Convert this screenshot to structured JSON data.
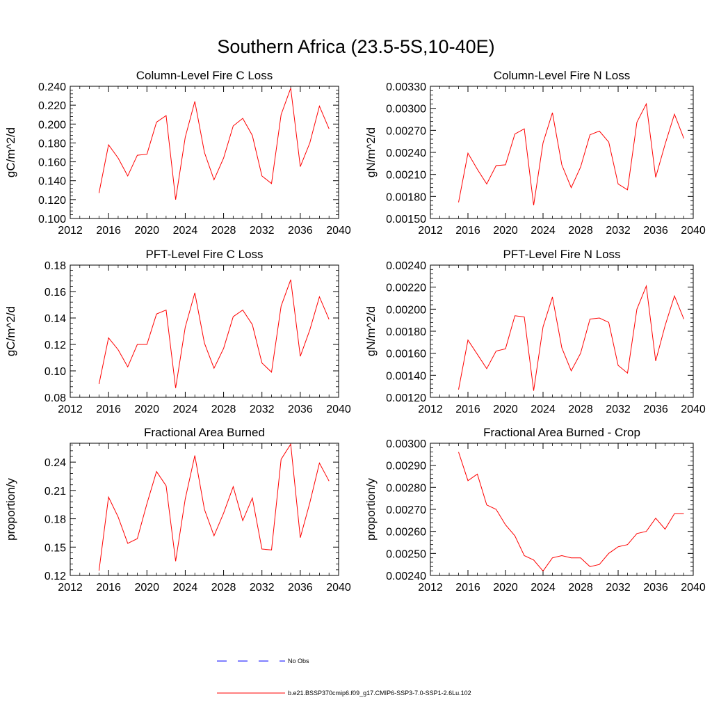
{
  "page": {
    "title": "Southern Africa (23.5-5S,10-40E)"
  },
  "legend": [
    {
      "label": "No Obs",
      "color": "#0000ff",
      "style": "dashed"
    },
    {
      "label": "b.e21.BSSP370cmip6.f09_g17.CMIP6-SSP3-7.0-SSP1-2.6Lu.102",
      "color": "#ff0000",
      "style": "solid"
    }
  ],
  "chart_data": [
    {
      "type": "line",
      "title": "Column-Level Fire C Loss",
      "ylabel": "gC/m^2/d",
      "xlabel": "",
      "xlim": [
        2012,
        2040
      ],
      "ylim": [
        0.1,
        0.24
      ],
      "xticks": [
        2012,
        2016,
        2020,
        2024,
        2028,
        2032,
        2036,
        2040
      ],
      "xtick_labels": [
        "2012",
        "2016",
        "2020",
        "2024",
        "2028",
        "2032",
        "2036",
        "2040"
      ],
      "yticks": [
        0.1,
        0.12,
        0.14,
        0.16,
        0.18,
        0.2,
        0.22,
        0.24
      ],
      "ytick_labels": [
        "0.100",
        "0.120",
        "0.140",
        "0.160",
        "0.180",
        "0.200",
        "0.220",
        "0.240"
      ],
      "color": "#ff0000",
      "x": [
        2015,
        2016,
        2017,
        2018,
        2019,
        2020,
        2021,
        2022,
        2023,
        2024,
        2025,
        2026,
        2027,
        2028,
        2029,
        2030,
        2031,
        2032,
        2033,
        2034,
        2035,
        2036,
        2037,
        2038,
        2039
      ],
      "y": [
        0.127,
        0.178,
        0.164,
        0.145,
        0.167,
        0.168,
        0.202,
        0.209,
        0.12,
        0.186,
        0.224,
        0.17,
        0.141,
        0.164,
        0.198,
        0.206,
        0.188,
        0.145,
        0.137,
        0.21,
        0.238,
        0.155,
        0.18,
        0.219,
        0.195
      ]
    },
    {
      "type": "line",
      "title": "Column-Level Fire N Loss",
      "ylabel": "gN/m^2/d",
      "xlabel": "",
      "xlim": [
        2012,
        2040
      ],
      "ylim": [
        0.0015,
        0.0033
      ],
      "xticks": [
        2012,
        2016,
        2020,
        2024,
        2028,
        2032,
        2036,
        2040
      ],
      "xtick_labels": [
        "2012",
        "2016",
        "2020",
        "2024",
        "2028",
        "2032",
        "2036",
        "2040"
      ],
      "yticks": [
        0.0015,
        0.0018,
        0.0021,
        0.0024,
        0.0027,
        0.003,
        0.0033
      ],
      "ytick_labels": [
        "0.00150",
        "0.00180",
        "0.00210",
        "0.00240",
        "0.00270",
        "0.00300",
        "0.00330"
      ],
      "color": "#ff0000",
      "x": [
        2015,
        2016,
        2017,
        2018,
        2019,
        2020,
        2021,
        2022,
        2023,
        2024,
        2025,
        2026,
        2027,
        2028,
        2029,
        2030,
        2031,
        2032,
        2033,
        2034,
        2035,
        2036,
        2037,
        2038,
        2039
      ],
      "y": [
        0.00172,
        0.00239,
        0.00217,
        0.00197,
        0.00222,
        0.00223,
        0.00265,
        0.00272,
        0.00168,
        0.00253,
        0.00294,
        0.00223,
        0.00192,
        0.0022,
        0.00264,
        0.00269,
        0.00254,
        0.00197,
        0.00189,
        0.00281,
        0.00306,
        0.00206,
        0.00251,
        0.00292,
        0.00259
      ]
    },
    {
      "type": "line",
      "title": "PFT-Level Fire C Loss",
      "ylabel": "gC/m^2/d",
      "xlabel": "",
      "xlim": [
        2012,
        2040
      ],
      "ylim": [
        0.08,
        0.18
      ],
      "xticks": [
        2012,
        2016,
        2020,
        2024,
        2028,
        2032,
        2036,
        2040
      ],
      "xtick_labels": [
        "2012",
        "2016",
        "2020",
        "2024",
        "2028",
        "2032",
        "2036",
        "2040"
      ],
      "yticks": [
        0.08,
        0.1,
        0.12,
        0.14,
        0.16,
        0.18
      ],
      "ytick_labels": [
        "0.08",
        "0.10",
        "0.12",
        "0.14",
        "0.16",
        "0.18"
      ],
      "color": "#ff0000",
      "x": [
        2015,
        2016,
        2017,
        2018,
        2019,
        2020,
        2021,
        2022,
        2023,
        2024,
        2025,
        2026,
        2027,
        2028,
        2029,
        2030,
        2031,
        2032,
        2033,
        2034,
        2035,
        2036,
        2037,
        2038,
        2039
      ],
      "y": [
        0.09,
        0.125,
        0.116,
        0.103,
        0.12,
        0.12,
        0.143,
        0.146,
        0.087,
        0.133,
        0.159,
        0.121,
        0.102,
        0.117,
        0.141,
        0.146,
        0.135,
        0.106,
        0.099,
        0.149,
        0.169,
        0.111,
        0.131,
        0.156,
        0.139
      ]
    },
    {
      "type": "line",
      "title": "PFT-Level Fire N Loss",
      "ylabel": "gN/m^2/d",
      "xlabel": "",
      "xlim": [
        2012,
        2040
      ],
      "ylim": [
        0.0012,
        0.0024
      ],
      "xticks": [
        2012,
        2016,
        2020,
        2024,
        2028,
        2032,
        2036,
        2040
      ],
      "xtick_labels": [
        "2012",
        "2016",
        "2020",
        "2024",
        "2028",
        "2032",
        "2036",
        "2040"
      ],
      "yticks": [
        0.0012,
        0.0014,
        0.0016,
        0.0018,
        0.002,
        0.0022,
        0.0024
      ],
      "ytick_labels": [
        "0.00120",
        "0.00140",
        "0.00160",
        "0.00180",
        "0.00200",
        "0.00220",
        "0.00240"
      ],
      "color": "#ff0000",
      "x": [
        2015,
        2016,
        2017,
        2018,
        2019,
        2020,
        2021,
        2022,
        2023,
        2024,
        2025,
        2026,
        2027,
        2028,
        2029,
        2030,
        2031,
        2032,
        2033,
        2034,
        2035,
        2036,
        2037,
        2038,
        2039
      ],
      "y": [
        0.00127,
        0.00172,
        0.00159,
        0.00146,
        0.00162,
        0.00164,
        0.00194,
        0.00193,
        0.00126,
        0.00184,
        0.00211,
        0.00165,
        0.00144,
        0.0016,
        0.00191,
        0.00192,
        0.00188,
        0.00149,
        0.00142,
        0.002,
        0.00221,
        0.00153,
        0.00185,
        0.00212,
        0.00191
      ]
    },
    {
      "type": "line",
      "title": "Fractional Area Burned",
      "ylabel": "proportion/y",
      "xlabel": "",
      "xlim": [
        2012,
        2040
      ],
      "ylim": [
        0.12,
        0.26
      ],
      "xticks": [
        2012,
        2016,
        2020,
        2024,
        2028,
        2032,
        2036,
        2040
      ],
      "xtick_labels": [
        "2012",
        "2016",
        "2020",
        "2024",
        "2028",
        "2032",
        "2036",
        "2040"
      ],
      "yticks": [
        0.12,
        0.15,
        0.18,
        0.21,
        0.24
      ],
      "ytick_labels": [
        "0.12",
        "0.15",
        "0.18",
        "0.21",
        "0.24"
      ],
      "color": "#ff0000",
      "x": [
        2015,
        2016,
        2017,
        2018,
        2019,
        2020,
        2021,
        2022,
        2023,
        2024,
        2025,
        2026,
        2027,
        2028,
        2029,
        2030,
        2031,
        2032,
        2033,
        2034,
        2035,
        2036,
        2037,
        2038,
        2039
      ],
      "y": [
        0.125,
        0.203,
        0.182,
        0.154,
        0.159,
        0.196,
        0.23,
        0.215,
        0.135,
        0.201,
        0.247,
        0.19,
        0.162,
        0.186,
        0.214,
        0.178,
        0.202,
        0.148,
        0.147,
        0.243,
        0.259,
        0.16,
        0.197,
        0.239,
        0.22
      ]
    },
    {
      "type": "line",
      "title": "Fractional Area Burned - Crop",
      "ylabel": "proportion/y",
      "xlabel": "",
      "xlim": [
        2012,
        2040
      ],
      "ylim": [
        0.0024,
        0.003
      ],
      "xticks": [
        2012,
        2016,
        2020,
        2024,
        2028,
        2032,
        2036,
        2040
      ],
      "xtick_labels": [
        "2012",
        "2016",
        "2020",
        "2024",
        "2028",
        "2032",
        "2036",
        "2040"
      ],
      "yticks": [
        0.0024,
        0.0025,
        0.0026,
        0.0027,
        0.0028,
        0.0029,
        0.003
      ],
      "ytick_labels": [
        "0.00240",
        "0.00250",
        "0.00260",
        "0.00270",
        "0.00280",
        "0.00290",
        "0.00300"
      ],
      "color": "#ff0000",
      "x": [
        2015,
        2016,
        2017,
        2018,
        2019,
        2020,
        2021,
        2022,
        2023,
        2024,
        2025,
        2026,
        2027,
        2028,
        2029,
        2030,
        2031,
        2032,
        2033,
        2034,
        2035,
        2036,
        2037,
        2038,
        2039
      ],
      "y": [
        0.00296,
        0.00283,
        0.00286,
        0.00272,
        0.0027,
        0.00263,
        0.00258,
        0.00249,
        0.00247,
        0.00242,
        0.00248,
        0.00249,
        0.00248,
        0.00248,
        0.00244,
        0.00245,
        0.0025,
        0.00253,
        0.00254,
        0.00259,
        0.0026,
        0.00266,
        0.00261,
        0.00268,
        0.00268
      ]
    }
  ]
}
